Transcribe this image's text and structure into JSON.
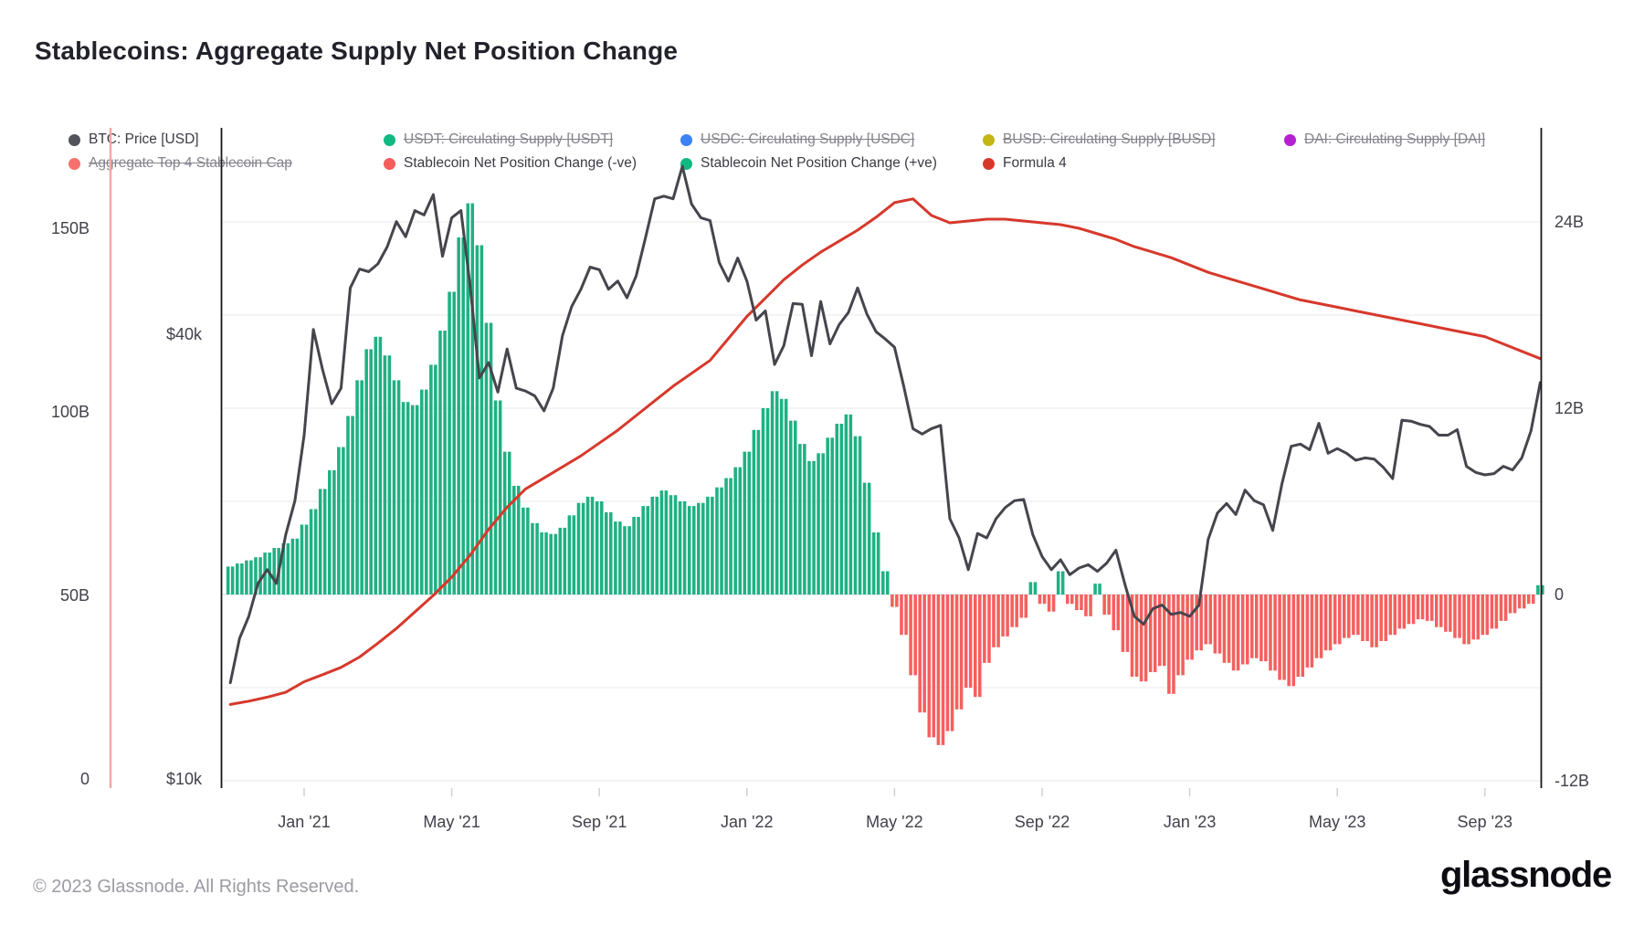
{
  "header": {
    "title": "Stablecoins: Aggregate Supply Net Position Change"
  },
  "legend": {
    "rows": [
      {
        "items": [
          {
            "label": "BTC: Price [USD]",
            "color": "#52525b",
            "disabled": false
          },
          {
            "label": "USDT: Circulating Supply [USDT]",
            "color": "#10b981",
            "disabled": true
          },
          {
            "label": "USDC: Circulating Supply [USDC]",
            "color": "#3b82f6",
            "disabled": true
          },
          {
            "label": "BUSD: Circulating Supply [BUSD]",
            "color": "#c3b614",
            "disabled": true
          },
          {
            "label": "DAI: Circulating Supply [DAI]",
            "color": "#b31fd1",
            "disabled": true
          }
        ]
      },
      {
        "items": [
          {
            "label": "Aggregate Top 4 Stablecoin Cap",
            "color": "#f4726b",
            "disabled": true
          },
          {
            "label": "Stablecoin Net Position Change (-ve)",
            "color": "#f45d5b",
            "disabled": false
          },
          {
            "label": "Stablecoin Net Position Change (+ve)",
            "color": "#10b981",
            "disabled": false
          },
          {
            "label": "Formula 4",
            "color": "#d6392c",
            "disabled": false
          }
        ]
      }
    ]
  },
  "axes": {
    "left_b": {
      "ticks": [
        {
          "label": "0",
          "v": 0
        },
        {
          "label": "50B",
          "v": 50
        },
        {
          "label": "100B",
          "v": 100
        },
        {
          "label": "150B",
          "v": 150
        }
      ]
    },
    "left_usd": {
      "ticks": [
        {
          "label": "$10k",
          "v": 10
        },
        {
          "label": "$40k",
          "v": 40
        }
      ]
    },
    "right_net": {
      "ticks": [
        {
          "label": "-12B",
          "v": -12
        },
        {
          "label": "0",
          "v": 0
        },
        {
          "label": "12B",
          "v": 12
        },
        {
          "label": "24B",
          "v": 24
        }
      ]
    },
    "x": {
      "ticks": [
        {
          "label": "Jan '21",
          "m": 0
        },
        {
          "label": "May '21",
          "m": 4
        },
        {
          "label": "Sep '21",
          "m": 8
        },
        {
          "label": "Jan '22",
          "m": 12
        },
        {
          "label": "May '22",
          "m": 16
        },
        {
          "label": "Sep '22",
          "m": 20
        },
        {
          "label": "Jan '23",
          "m": 24
        },
        {
          "label": "May '23",
          "m": 28
        },
        {
          "label": "Sep '23",
          "m": 32
        }
      ]
    }
  },
  "footer": {
    "copyright": "© 2023 Glassnode. All Rights Reserved.",
    "logo_text": "glassnode"
  },
  "chart_data": {
    "type": "line+bar combo",
    "x_unit": "months since 2021-01-01 (m=0), step fields give sample spacing",
    "axes": {
      "left_billions": {
        "range": [
          0,
          177
        ],
        "ticks": [
          0,
          50,
          100,
          150
        ],
        "series": [
          "Formula 4"
        ]
      },
      "left_usd_log": {
        "range_k": [
          10,
          76
        ],
        "ticks_k": [
          10,
          40
        ],
        "series": [
          "BTC: Price [USD]"
        ]
      },
      "right_net_billions": {
        "range": [
          -12.5,
          30
        ],
        "ticks": [
          -12,
          0,
          12,
          24
        ],
        "series": [
          "Stablecoin Net Position Change"
        ]
      },
      "x_range_months": [
        -2.4,
        33.5
      ],
      "grid": "faint horizontal lines at right-axis 6B intervals",
      "legend_position": "top overlay, two rows"
    },
    "series": [
      {
        "name": "BTC: Price [USD]",
        "type": "line",
        "axis": "left_usd_log",
        "unit": "USD thousands",
        "color": "#45454d",
        "start_month": -2.5,
        "step_month": 0.25,
        "values": [
          11.4,
          12.9,
          13.5,
          15.5,
          16.6,
          18.4,
          19.2,
          18.4,
          21.4,
          23.8,
          29.2,
          40.6,
          35.8,
          32.2,
          33.8,
          46.2,
          49.0,
          48.6,
          49.8,
          52.5,
          56.8,
          54.2,
          58.8,
          58.0,
          61.8,
          51.0,
          57.5,
          58.8,
          46.4,
          34.9,
          36.6,
          33.4,
          38.2,
          33.8,
          33.5,
          33.0,
          31.5,
          33.8,
          39.8,
          43.6,
          46.0,
          49.3,
          48.9,
          46.0,
          47.2,
          44.8,
          48.0,
          54.0,
          61.0,
          61.5,
          61.0,
          67.5,
          60.0,
          57.5,
          57.0,
          50.0,
          47.2,
          50.7,
          47.2,
          41.8,
          43.0,
          36.4,
          38.6,
          44.0,
          43.9,
          37.4,
          44.3,
          38.8,
          41.2,
          42.8,
          46.2,
          42.6,
          40.3,
          39.4,
          38.4,
          34.0,
          29.8,
          29.3,
          29.8,
          30.1,
          22.5,
          21.2,
          19.2,
          21.5,
          21.2,
          22.5,
          23.3,
          23.8,
          23.9,
          21.4,
          20.0,
          19.2,
          19.8,
          18.9,
          19.3,
          19.5,
          19.1,
          19.6,
          20.4,
          18.3,
          16.6,
          16.2,
          17.0,
          17.2,
          16.7,
          16.8,
          16.6,
          17.2,
          21.1,
          22.9,
          23.6,
          22.8,
          24.6,
          23.8,
          23.5,
          21.7,
          25.1,
          28.2,
          28.4,
          27.9,
          30.3,
          27.6,
          28.0,
          27.6,
          27.0,
          27.2,
          27.1,
          26.4,
          25.5,
          30.6,
          30.5,
          30.2,
          30.0,
          29.2,
          29.2,
          29.7,
          26.5,
          26.0,
          25.8,
          25.9,
          26.5,
          26.2,
          27.2,
          29.6,
          34.4
        ]
      },
      {
        "name": "Formula 4",
        "type": "line",
        "axis": "left_billions",
        "unit": "USD billions",
        "color": "#d6392c",
        "start_month": -2.5,
        "step_month": 0.5,
        "values": [
          19.5,
          20.3,
          21.2,
          22.3,
          23.6,
          26.5,
          28.4,
          30.4,
          33.2,
          37.0,
          41.0,
          45.5,
          50.0,
          55.0,
          61.0,
          68.0,
          74.0,
          79.0,
          82.0,
          85.0,
          88.0,
          91.5,
          95.0,
          99.0,
          103.0,
          107.0,
          110.5,
          114.0,
          120.0,
          126.0,
          131.0,
          136.0,
          140.0,
          143.5,
          146.5,
          149.5,
          153.0,
          157.0,
          158.0,
          153.5,
          151.5,
          152.0,
          152.5,
          152.5,
          152.0,
          151.5,
          151.0,
          150.0,
          148.5,
          147.0,
          145.0,
          143.5,
          142.0,
          140.0,
          138.0,
          136.5,
          135.0,
          133.5,
          132.0,
          130.5,
          129.5,
          128.5,
          127.5,
          126.5,
          125.5,
          124.5,
          123.5,
          122.5,
          121.5,
          120.5,
          118.5,
          116.5,
          114.5
        ]
      },
      {
        "name": "Stablecoin Net Position Change",
        "type": "bar",
        "axis": "right_net_billions",
        "unit": "USD billions",
        "pos_color": "#1fb183",
        "neg_color": "#f4605e",
        "pos_legend": "Stablecoin Net Position Change (+ve)",
        "neg_legend": "Stablecoin Net Position Change (-ve)",
        "start_month": -2.5,
        "step_month": 0.25,
        "values": [
          1.2,
          1.5,
          1.8,
          2.0,
          2.2,
          2.4,
          2.7,
          3.0,
          3.3,
          3.6,
          4.5,
          5.5,
          6.8,
          8.0,
          9.5,
          11.5,
          13.8,
          15.8,
          16.6,
          15.4,
          13.8,
          12.4,
          12.2,
          13.2,
          14.8,
          17.0,
          19.5,
          23.0,
          25.2,
          22.5,
          17.5,
          12.5,
          9.2,
          7.0,
          5.6,
          4.6,
          4.0,
          3.9,
          4.3,
          5.1,
          5.9,
          6.3,
          6.0,
          5.3,
          4.7,
          4.4,
          5.0,
          5.7,
          6.3,
          6.7,
          6.4,
          6.0,
          5.7,
          5.9,
          6.3,
          6.9,
          7.5,
          8.2,
          9.2,
          10.6,
          12.0,
          13.1,
          12.6,
          11.2,
          9.7,
          8.6,
          9.1,
          10.1,
          11.0,
          11.6,
          10.2,
          7.2,
          4.0,
          1.5,
          -0.8,
          -2.6,
          -5.2,
          -7.6,
          -9.2,
          -9.7,
          -8.8,
          -7.4,
          -6.0,
          -6.6,
          -4.4,
          -3.4,
          -2.7,
          -2.1,
          -1.5,
          0.8,
          -0.6,
          -1.1,
          1.5,
          -0.6,
          -1.0,
          -1.4,
          0.7,
          -1.3,
          -2.3,
          -3.7,
          -5.3,
          -5.6,
          -5.0,
          -4.6,
          -6.4,
          -5.2,
          -4.2,
          -3.6,
          -3.2,
          -3.8,
          -4.4,
          -4.9,
          -4.5,
          -4.1,
          -4.3,
          -4.9,
          -5.5,
          -5.9,
          -5.3,
          -4.7,
          -4.1,
          -3.6,
          -3.2,
          -2.8,
          -2.6,
          -3.0,
          -3.4,
          -3.0,
          -2.6,
          -2.2,
          -1.9,
          -1.6,
          -1.7,
          -2.1,
          -2.4,
          -2.8,
          -3.2,
          -2.9,
          -2.6,
          -2.2,
          -1.7,
          -1.2,
          -0.9,
          -0.6,
          0.6
        ]
      }
    ]
  }
}
